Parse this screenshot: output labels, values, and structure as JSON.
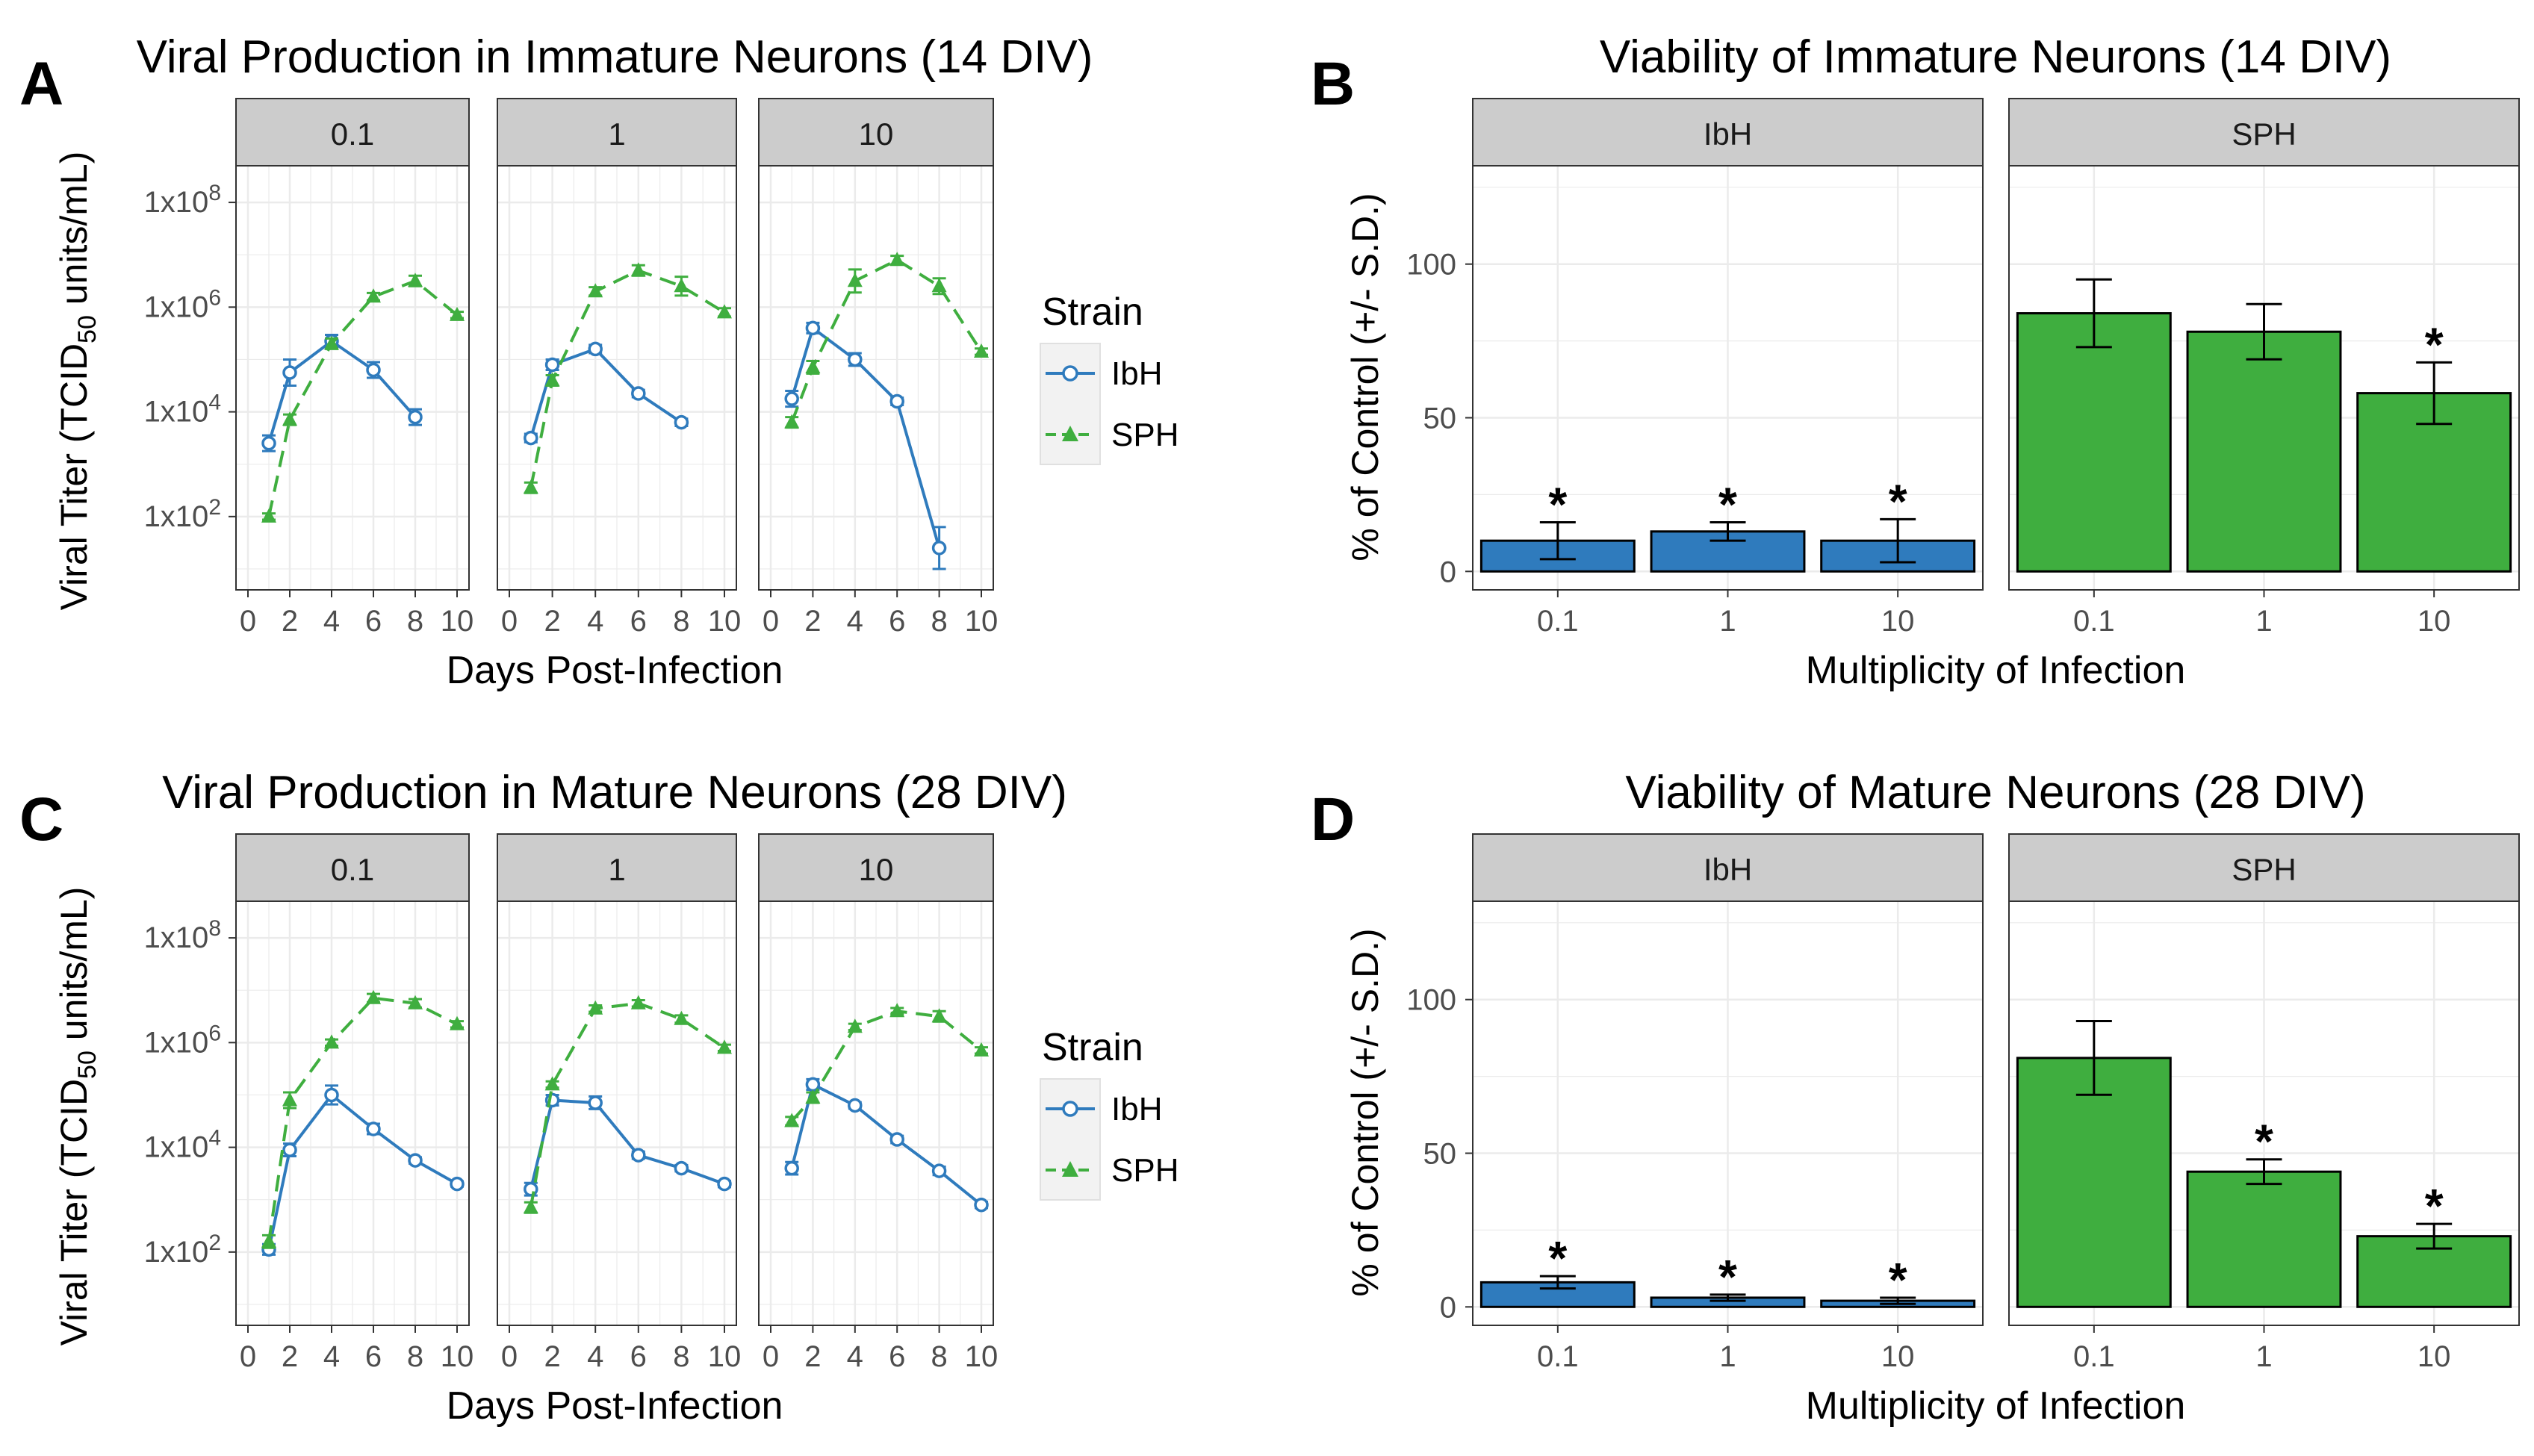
{
  "colors": {
    "IbH": "#2f7bbd",
    "SPH": "#3fae3f",
    "strip": "#cccccc",
    "grid": "#ebebeb",
    "axis": "#333333"
  },
  "chart_data": [
    {
      "id": "A",
      "panel_label": "A",
      "type": "line",
      "title": "Viral Production in Immature Neurons (14 DIV)",
      "xlabel": "Days Post-Infection",
      "ylabel_main": "Viral Titer (TCID",
      "ylabel_sub": "50",
      "ylabel_end": " units/mL)",
      "xlim": [
        0,
        10
      ],
      "xticks": [
        "0",
        "2",
        "4",
        "6",
        "8",
        "10"
      ],
      "ylim_log10": [
        0.6,
        8.7
      ],
      "yticks": [
        {
          "base": "1x10",
          "exp": "2"
        },
        {
          "base": "1x10",
          "exp": "4"
        },
        {
          "base": "1x10",
          "exp": "6"
        },
        {
          "base": "1x10",
          "exp": "8"
        }
      ],
      "legend": {
        "title": "Strain",
        "entries": [
          "IbH",
          "SPH"
        ]
      },
      "facets": [
        {
          "label": "0.1",
          "series": [
            {
              "name": "IbH",
              "x": [
                1,
                2,
                4,
                6,
                8
              ],
              "log10": [
                3.4,
                4.75,
                5.35,
                4.8,
                3.9
              ],
              "err": [
                0.15,
                0.25,
                0.12,
                0.15,
                0.15
              ]
            },
            {
              "name": "SPH",
              "x": [
                1,
                2,
                4,
                6,
                8,
                10
              ],
              "log10": [
                2.0,
                3.85,
                5.3,
                6.2,
                6.5,
                5.85
              ],
              "err": [
                0.06,
                0.1,
                0.1,
                0.07,
                0.1,
                0.06
              ]
            }
          ]
        },
        {
          "label": "1",
          "series": [
            {
              "name": "IbH",
              "x": [
                1,
                2,
                4,
                6,
                8
              ],
              "log10": [
                3.5,
                4.9,
                5.2,
                4.35,
                3.8
              ],
              "err": [
                0.08,
                0.1,
                0.08,
                0.07,
                0.07
              ]
            },
            {
              "name": "SPH",
              "x": [
                1,
                2,
                4,
                6,
                8,
                10
              ],
              "log10": [
                2.55,
                4.6,
                6.3,
                6.7,
                6.4,
                5.9
              ],
              "err": [
                0.1,
                0.1,
                0.08,
                0.1,
                0.18,
                0.08
              ]
            }
          ]
        },
        {
          "label": "10",
          "series": [
            {
              "name": "IbH",
              "x": [
                1,
                2,
                4,
                6,
                8
              ],
              "log10": [
                4.25,
                5.6,
                5.0,
                4.2,
                1.4
              ],
              "err": [
                0.15,
                0.1,
                0.12,
                0.07,
                0.4
              ]
            },
            {
              "name": "SPH",
              "x": [
                1,
                2,
                4,
                6,
                8,
                10
              ],
              "log10": [
                3.8,
                4.85,
                6.5,
                6.9,
                6.4,
                5.15
              ],
              "err": [
                0.1,
                0.12,
                0.22,
                0.08,
                0.15,
                0.06
              ]
            }
          ]
        }
      ]
    },
    {
      "id": "B",
      "panel_label": "B",
      "type": "bar",
      "title": "Viability of Immature Neurons (14 DIV)",
      "xlabel": "Multiplicity of Infection",
      "ylabel": "% of Control (+/- S.D.)",
      "ylim": [
        -6,
        132
      ],
      "yticks": [
        0,
        50,
        100
      ],
      "facets": [
        {
          "label": "IbH",
          "categories": [
            "0.1",
            "1",
            "10"
          ],
          "values": [
            10,
            13,
            10
          ],
          "sd": [
            6,
            3,
            7
          ],
          "significant": [
            true,
            true,
            true
          ]
        },
        {
          "label": "SPH",
          "categories": [
            "0.1",
            "1",
            "10"
          ],
          "values": [
            84,
            78,
            58
          ],
          "sd": [
            11,
            9,
            10
          ],
          "significant": [
            false,
            false,
            true
          ]
        }
      ],
      "significance_marker": "*"
    },
    {
      "id": "C",
      "panel_label": "C",
      "type": "line",
      "title": "Viral Production in Mature Neurons (28 DIV)",
      "xlabel": "Days Post-Infection",
      "ylabel_main": "Viral Titer (TCID",
      "ylabel_sub": "50",
      "ylabel_end": " units/mL)",
      "xlim": [
        0,
        10
      ],
      "xticks": [
        "0",
        "2",
        "4",
        "6",
        "8",
        "10"
      ],
      "ylim_log10": [
        0.6,
        8.7
      ],
      "yticks": [
        {
          "base": "1x10",
          "exp": "2"
        },
        {
          "base": "1x10",
          "exp": "4"
        },
        {
          "base": "1x10",
          "exp": "6"
        },
        {
          "base": "1x10",
          "exp": "8"
        }
      ],
      "legend": {
        "title": "Strain",
        "entries": [
          "IbH",
          "SPH"
        ]
      },
      "facets": [
        {
          "label": "0.1",
          "series": [
            {
              "name": "IbH",
              "x": [
                1,
                2,
                4,
                6,
                8,
                10
              ],
              "log10": [
                2.05,
                3.95,
                5.0,
                4.35,
                3.75,
                3.3
              ],
              "err": [
                0.1,
                0.12,
                0.18,
                0.1,
                0.06,
                0.05
              ]
            },
            {
              "name": "SPH",
              "x": [
                1,
                2,
                4,
                6,
                8,
                10
              ],
              "log10": [
                2.2,
                4.9,
                6.0,
                6.85,
                6.75,
                6.35
              ],
              "err": [
                0.12,
                0.15,
                0.06,
                0.08,
                0.08,
                0.06
              ]
            }
          ]
        },
        {
          "label": "1",
          "series": [
            {
              "name": "IbH",
              "x": [
                1,
                2,
                4,
                6,
                8,
                10
              ],
              "log10": [
                3.2,
                4.9,
                4.85,
                3.85,
                3.6,
                3.3
              ],
              "err": [
                0.12,
                0.1,
                0.12,
                0.07,
                0.06,
                0.06
              ]
            },
            {
              "name": "SPH",
              "x": [
                1,
                2,
                4,
                6,
                8,
                10
              ],
              "log10": [
                2.85,
                5.2,
                6.65,
                6.75,
                6.45,
                5.9
              ],
              "err": [
                0.1,
                0.06,
                0.06,
                0.06,
                0.07,
                0.06
              ]
            }
          ]
        },
        {
          "label": "10",
          "series": [
            {
              "name": "IbH",
              "x": [
                1,
                2,
                4,
                6,
                8,
                10
              ],
              "log10": [
                3.6,
                5.2,
                4.8,
                4.15,
                3.55,
                2.9
              ],
              "err": [
                0.12,
                0.1,
                0.06,
                0.07,
                0.08,
                0.06
              ]
            },
            {
              "name": "SPH",
              "x": [
                1,
                2,
                4,
                6,
                8,
                10
              ],
              "log10": [
                4.5,
                4.95,
                6.3,
                6.6,
                6.5,
                5.85
              ],
              "err": [
                0.08,
                0.1,
                0.06,
                0.06,
                0.1,
                0.06
              ]
            }
          ]
        }
      ]
    },
    {
      "id": "D",
      "panel_label": "D",
      "type": "bar",
      "title": "Viability of Mature Neurons (28 DIV)",
      "xlabel": "Multiplicity of Infection",
      "ylabel": "% of Control (+/- S.D.)",
      "ylim": [
        -6,
        132
      ],
      "yticks": [
        0,
        50,
        100
      ],
      "facets": [
        {
          "label": "IbH",
          "categories": [
            "0.1",
            "1",
            "10"
          ],
          "values": [
            8,
            3,
            2
          ],
          "sd": [
            2,
            1,
            1
          ],
          "significant": [
            true,
            true,
            true
          ]
        },
        {
          "label": "SPH",
          "categories": [
            "0.1",
            "1",
            "10"
          ],
          "values": [
            81,
            44,
            23
          ],
          "sd": [
            12,
            4,
            4
          ],
          "significant": [
            false,
            true,
            true
          ]
        }
      ],
      "significance_marker": "*"
    }
  ]
}
